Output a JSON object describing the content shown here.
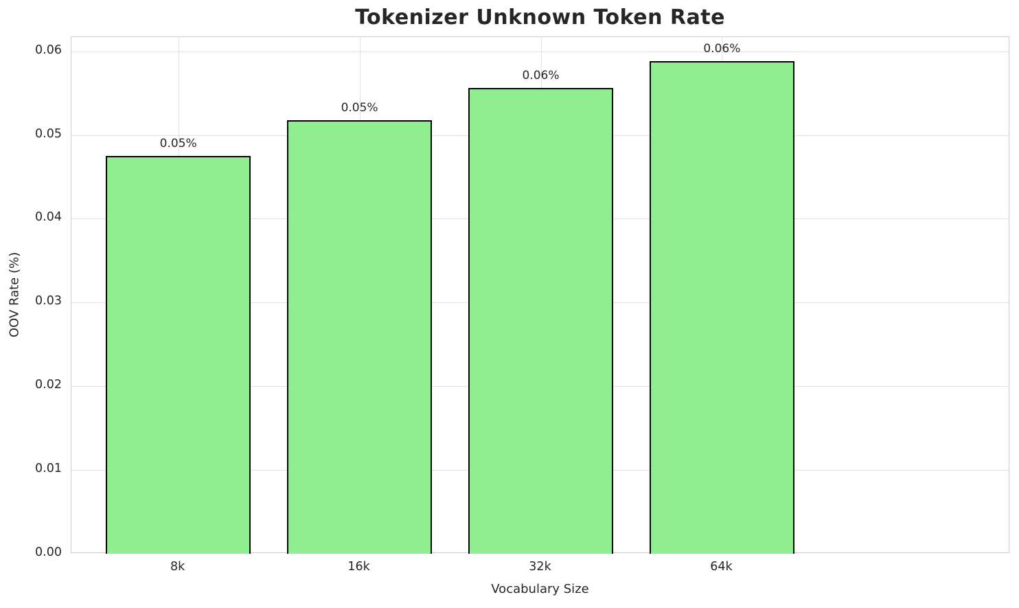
{
  "title": "Tokenizer Unknown Token Rate",
  "chart_data": {
    "type": "bar",
    "title": "Tokenizer Unknown Token Rate",
    "xlabel": "Vocabulary Size",
    "ylabel": "OOV Rate (%)",
    "categories": [
      "8k",
      "16k",
      "32k",
      "64k"
    ],
    "values": [
      0.0475,
      0.0518,
      0.0556,
      0.0588
    ],
    "bar_labels": [
      "0.05%",
      "0.05%",
      "0.06%",
      "0.06%"
    ],
    "yticks": [
      "0.00",
      "0.01",
      "0.02",
      "0.03",
      "0.04",
      "0.05",
      "0.06"
    ],
    "ytick_values": [
      0,
      0.01,
      0.02,
      0.03,
      0.04,
      0.05,
      0.06
    ],
    "ylim": [
      0,
      0.0617
    ],
    "grid": true,
    "legend": false,
    "colors": {
      "bar_fill": "#90EE90",
      "bar_edge": "#000000",
      "grid": "#e2e2e2",
      "plot_border": "#cccccc",
      "text": "#262626",
      "background": "#ffffff"
    }
  }
}
